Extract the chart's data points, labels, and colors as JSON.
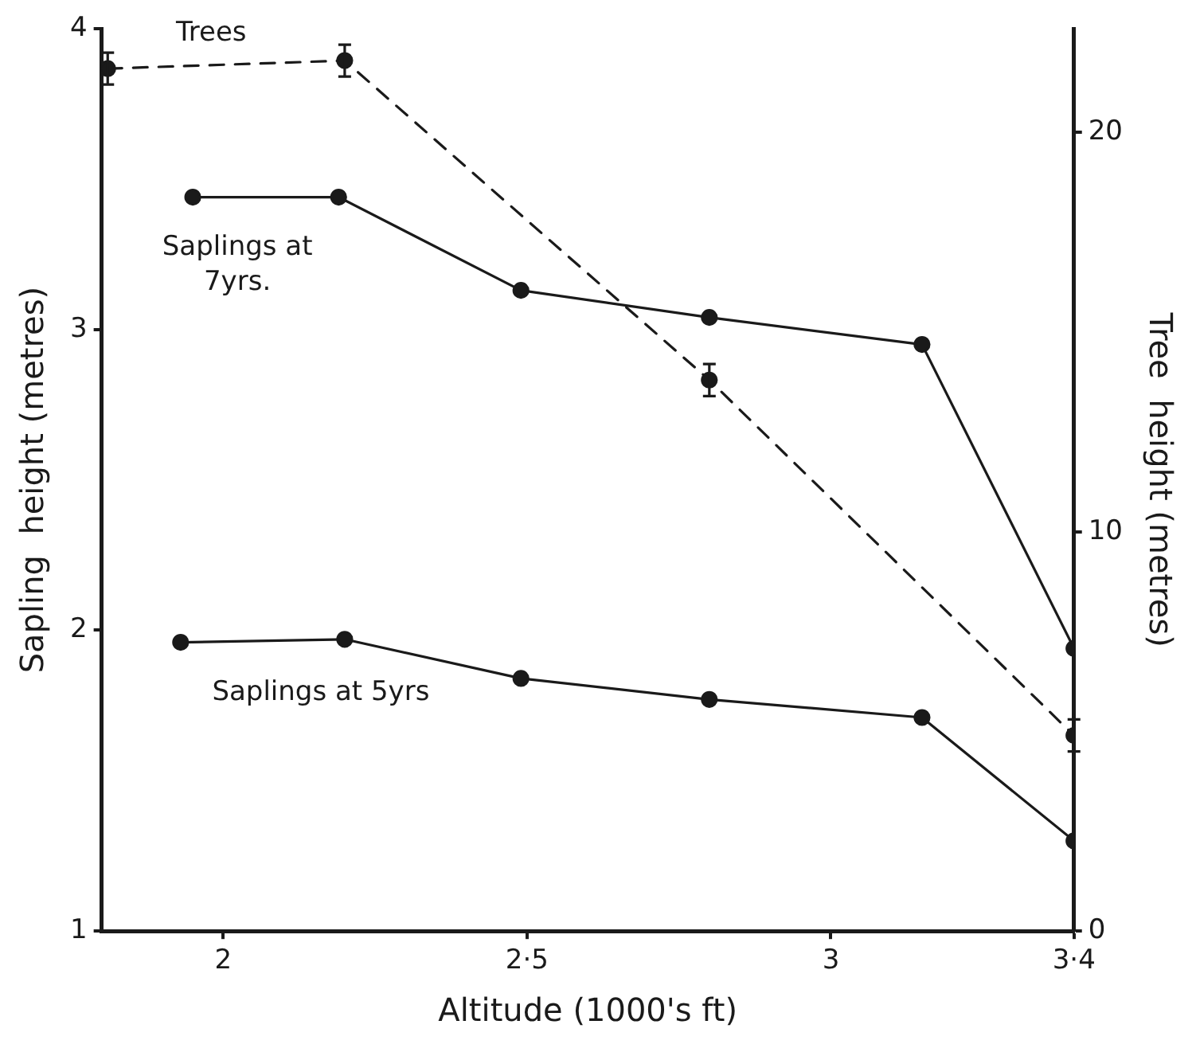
{
  "chart_data": {
    "type": "line",
    "xlabel": "Altitude (1000's ft)",
    "ylabel": "Sapling  height (metres)",
    "y2label": "Tree  height (metres)",
    "xlim": [
      1.8,
      3.4
    ],
    "xticks": [
      2,
      {
        "value": 2.5,
        "label": "2·5"
      },
      3,
      {
        "value": 3.4,
        "label": "3·4"
      }
    ],
    "ylim": [
      1,
      4
    ],
    "yticks": [
      1,
      2,
      3,
      4
    ],
    "y2lim": [
      0,
      22.6
    ],
    "y2ticks": [
      0,
      10,
      20
    ],
    "grid": false,
    "legend": false,
    "marker": "circle",
    "series": [
      {
        "name": "Trees",
        "color": "#1a1a1a",
        "axis": "y2",
        "line_style": "dashed",
        "x": [
          1.81,
          2.2,
          2.8,
          3.4
        ],
        "values": [
          21.6,
          21.8,
          13.8,
          4.9
        ],
        "errors": [
          0.4,
          0.4,
          0.4,
          0.4
        ]
      },
      {
        "name": "Saplings at 7yrs.",
        "color": "#1a1a1a",
        "line_style": "solid",
        "x": [
          1.95,
          2.19,
          2.49,
          2.8,
          3.15,
          3.4
        ],
        "values": [
          3.44,
          3.44,
          3.13,
          3.04,
          2.95,
          1.94
        ]
      },
      {
        "name": "Saplings at 5yrs",
        "color": "#1a1a1a",
        "line_style": "solid",
        "x": [
          1.93,
          2.2,
          2.49,
          2.8,
          3.15,
          3.4
        ],
        "values": [
          1.96,
          1.97,
          1.84,
          1.77,
          1.71,
          1.3
        ]
      }
    ]
  }
}
